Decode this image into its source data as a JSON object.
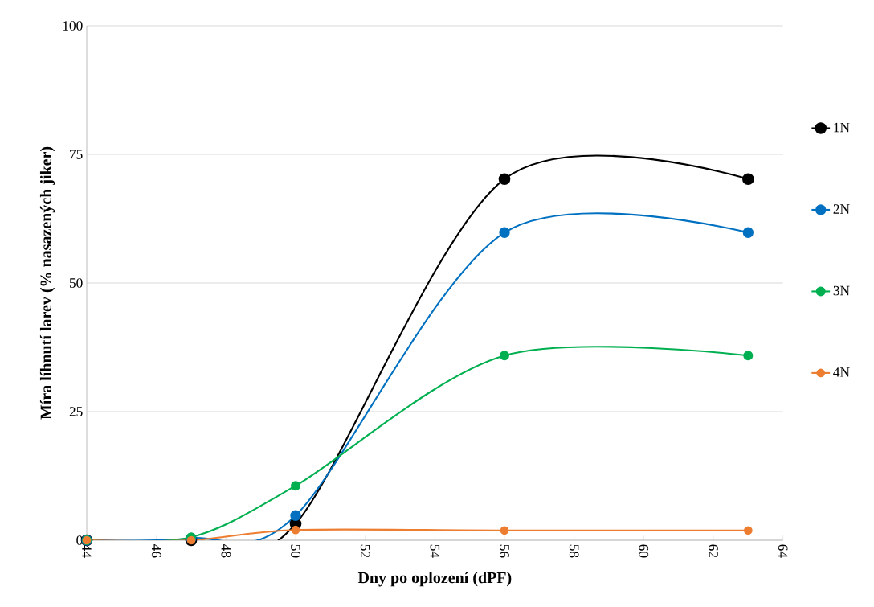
{
  "chart_data": {
    "type": "line",
    "xlabel": "Dny po oplození (dPF)",
    "ylabel": "Míra líhnutí larev (% nasazených jiker)",
    "x": [
      44,
      47,
      50,
      56,
      63
    ],
    "series": [
      {
        "name": "1N",
        "color": "#000000",
        "values": [
          0,
          0,
          3.2,
          70.2,
          70.2
        ]
      },
      {
        "name": "2N",
        "color": "#0070c0",
        "values": [
          0,
          0.4,
          4.8,
          59.8,
          59.8
        ]
      },
      {
        "name": "3N",
        "color": "#00b050",
        "values": [
          0,
          0.6,
          10.6,
          35.9,
          35.9
        ]
      },
      {
        "name": "4N",
        "color": "#ed7d31",
        "values": [
          0,
          0,
          2,
          1.9,
          1.9
        ]
      }
    ],
    "xlim": [
      44,
      64
    ],
    "xticks": [
      44,
      46,
      48,
      50,
      52,
      54,
      56,
      58,
      60,
      62,
      64
    ],
    "ylim": [
      0,
      100
    ],
    "yticks": [
      0,
      25,
      50,
      75,
      100
    ],
    "grid": "y",
    "legend": "right",
    "marker": "circle",
    "line_style": "solid"
  }
}
